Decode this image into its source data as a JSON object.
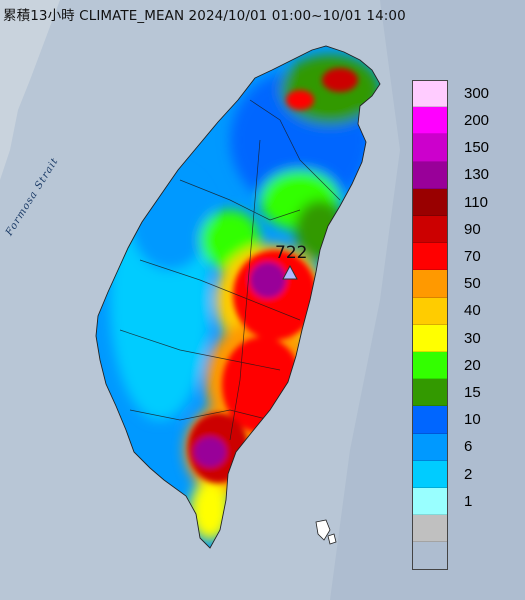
{
  "title": "累積13小時 CLIMATE_MEAN 2024/10/01 01:00~10/01 14:00",
  "strait_label": "Formosa Strait",
  "max_value_label": "722",
  "legend": {
    "labels": [
      "300",
      "200",
      "150",
      "130",
      "110",
      "90",
      "70",
      "50",
      "40",
      "30",
      "20",
      "15",
      "10",
      "6",
      "2",
      "1"
    ],
    "colors": [
      "#ffccff",
      "#ff00ff",
      "#cc00cc",
      "#990099",
      "#990000",
      "#cc0000",
      "#ff0000",
      "#ff9900",
      "#ffcc00",
      "#ffff00",
      "#33ff00",
      "#339900",
      "#0066ff",
      "#0099ff",
      "#00ccff",
      "#99ffff",
      "#c0c0c0"
    ]
  },
  "colors": {
    "sea": "#b8c6d6",
    "land_base": "#00ccff",
    "marker": "#b3b8ff"
  }
}
